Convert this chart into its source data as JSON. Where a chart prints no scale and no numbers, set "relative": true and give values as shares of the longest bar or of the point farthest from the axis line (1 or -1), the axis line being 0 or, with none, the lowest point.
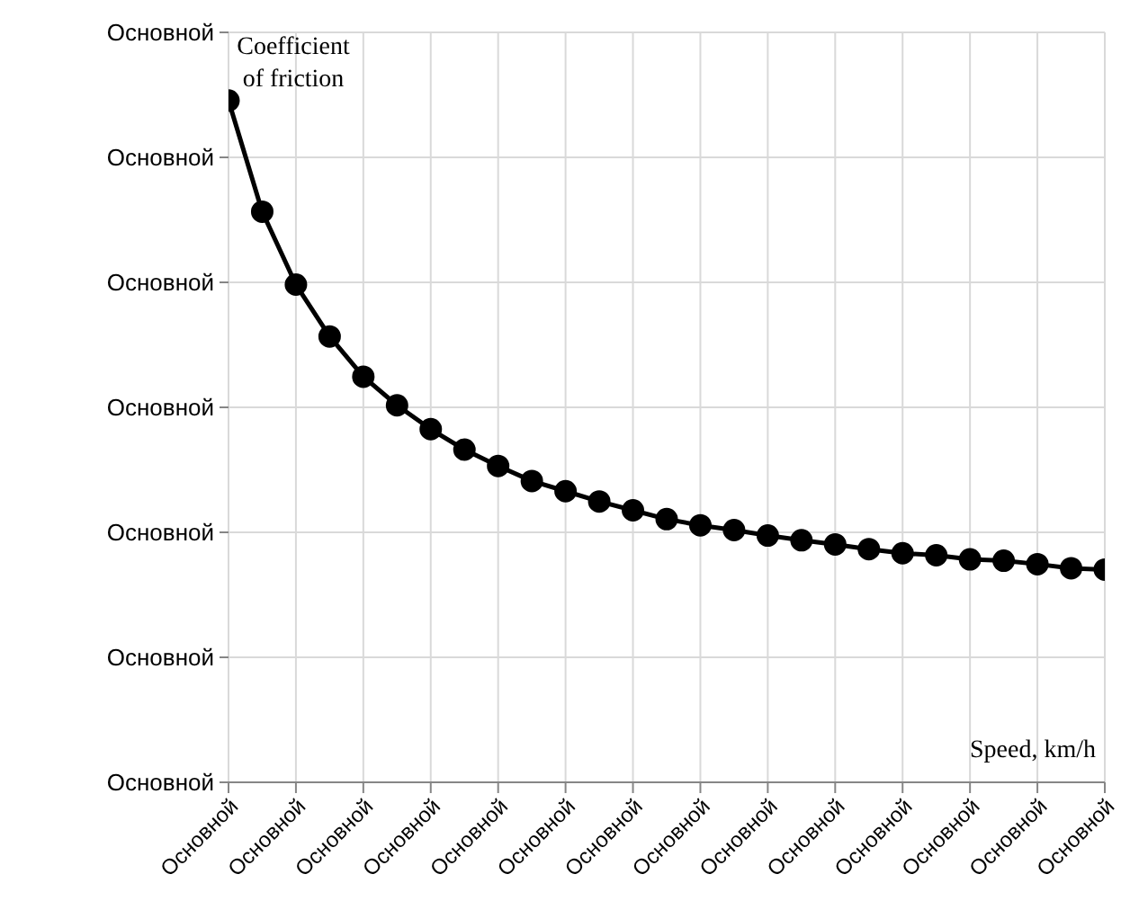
{
  "chart_data": {
    "type": "line",
    "xlabel": "Speed, km/h",
    "ylabel": "Coefficient of friction",
    "relative": true,
    "annotations": [
      "Основной",
      "Основной",
      "Основной",
      "Основной",
      "Основной",
      "Основной",
      "Основной"
    ],
    "categories": [
      "Основной",
      null,
      "Основной",
      null,
      "Основной",
      null,
      "Основной",
      null,
      "Основной",
      null,
      "Основной",
      null,
      "Основной",
      null,
      "Основной",
      null,
      "Основной",
      null,
      "Основной",
      null,
      "Основной",
      null,
      "Основной",
      null,
      "Основной",
      null,
      "Основной"
    ],
    "series": [
      {
        "color": "#000000",
        "values": [
          1,
          0.837,
          0.73,
          0.654,
          0.595,
          0.553,
          0.518,
          0.488,
          0.464,
          0.442,
          0.427,
          0.412,
          0.399,
          0.386,
          0.377,
          0.37,
          0.362,
          0.355,
          0.349,
          0.342,
          0.336,
          0.333,
          0.327,
          0.325,
          0.32,
          0.314,
          0.312
        ]
      }
    ],
    "grid": true,
    "marker": "circle",
    "line_style": "solid"
  }
}
